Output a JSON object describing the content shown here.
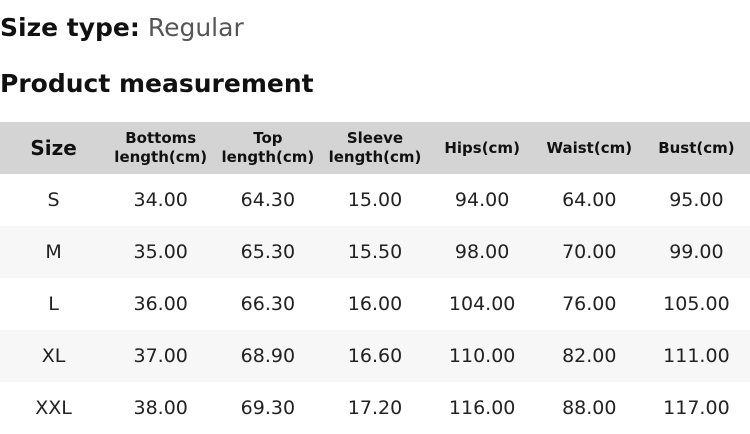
{
  "size_type": {
    "label": "Size type:",
    "value": "Regular"
  },
  "section_title": "Product measurement",
  "table": {
    "headers": [
      "Size",
      "Bottoms length(cm)",
      "Top length(cm)",
      "Sleeve length(cm)",
      "Hips(cm)",
      "Waist(cm)",
      "Bust(cm)"
    ],
    "rows": [
      [
        "S",
        "34.00",
        "64.30",
        "15.00",
        "94.00",
        "64.00",
        "95.00"
      ],
      [
        "M",
        "35.00",
        "65.30",
        "15.50",
        "98.00",
        "70.00",
        "99.00"
      ],
      [
        "L",
        "36.00",
        "66.30",
        "16.00",
        "104.00",
        "76.00",
        "105.00"
      ],
      [
        "XL",
        "37.00",
        "68.90",
        "16.60",
        "110.00",
        "82.00",
        "111.00"
      ],
      [
        "XXL",
        "38.00",
        "69.30",
        "17.20",
        "116.00",
        "88.00",
        "117.00"
      ]
    ]
  },
  "colors": {
    "header_bg": "#d4d4d4",
    "alt_row_bg": "#f7f7f7",
    "value_text": "#555555"
  }
}
